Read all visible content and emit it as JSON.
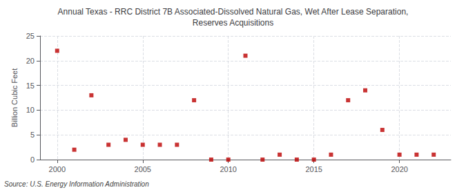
{
  "chart_data": {
    "type": "scatter",
    "title": "Annual Texas - RRC District 7B Associated-Dissolved Natural Gas, Wet After Lease Separation,\nReserves Acquisitions",
    "ylabel": "Billion Cubic Feet",
    "annotation": "Source: U.S. Energy Information Administration",
    "x": [
      2000,
      2001,
      2002,
      2003,
      2004,
      2005,
      2006,
      2007,
      2008,
      2009,
      2010,
      2011,
      2012,
      2013,
      2014,
      2015,
      2016,
      2017,
      2018,
      2019,
      2020,
      2021,
      2022
    ],
    "values": [
      22.0,
      2.0,
      13.0,
      3.0,
      4.0,
      3.0,
      3.0,
      3.0,
      12.0,
      0.0,
      0.0,
      21.0,
      0.0,
      1.0,
      0.0,
      0.0,
      1.0,
      12.0,
      14.0,
      6.0,
      1.0,
      1.0,
      1.0
    ],
    "color": "#bb0000",
    "marker": "square",
    "xlim": [
      1999,
      2023
    ],
    "ylim": [
      0,
      25
    ],
    "xticks": [
      2000,
      2005,
      2010,
      2015,
      2020
    ],
    "yticks": [
      0,
      5,
      10,
      15,
      20,
      25
    ],
    "grid": true
  }
}
